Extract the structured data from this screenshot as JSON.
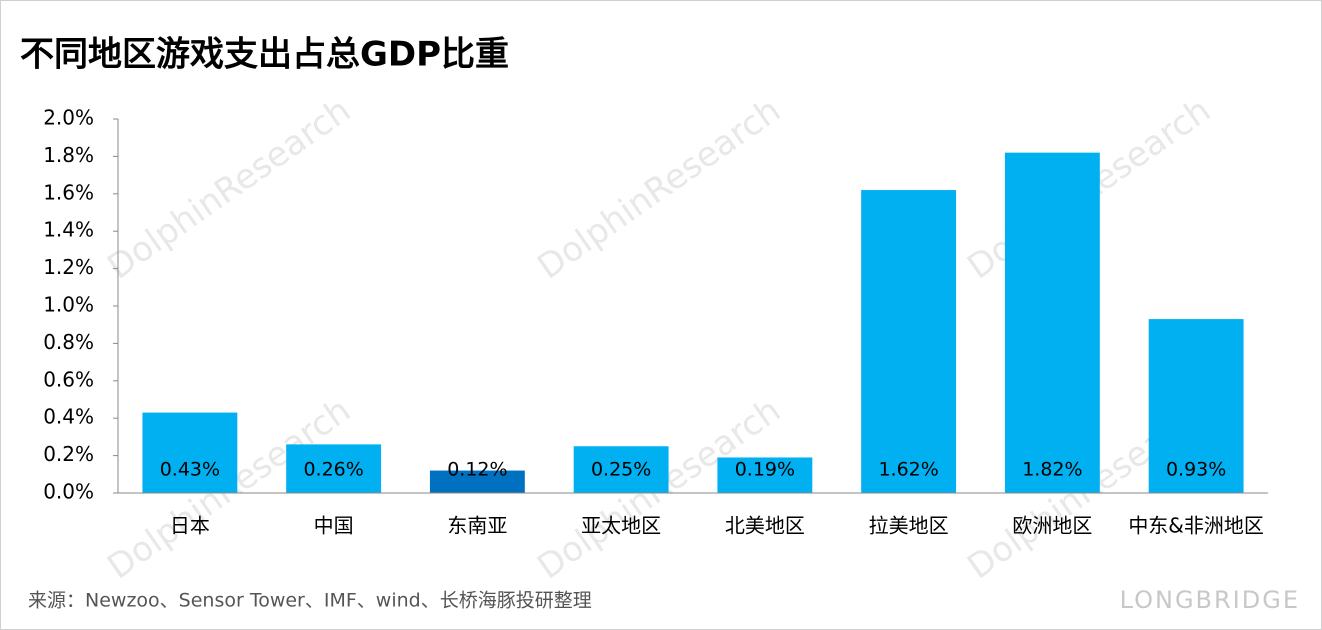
{
  "chart_data": {
    "type": "bar",
    "title": "不同地区游戏支出占总GDP比重",
    "categories": [
      "日本",
      "中国",
      "东南亚",
      "亚太地区",
      "北美地区",
      "拉美地区",
      "欧洲地区",
      "中东&非洲地区"
    ],
    "values": [
      0.43,
      0.26,
      0.12,
      0.25,
      0.19,
      1.62,
      1.82,
      0.93
    ],
    "value_labels": [
      "0.43%",
      "0.26%",
      "0.12%",
      "0.25%",
      "0.19%",
      "1.62%",
      "1.82%",
      "0.93%"
    ],
    "colors": [
      "#00b0f0",
      "#00b0f0",
      "#0070c0",
      "#00b0f0",
      "#00b0f0",
      "#00b0f0",
      "#00b0f0",
      "#00b0f0"
    ],
    "ylim": [
      0,
      2.0
    ],
    "yticks": [
      {
        "value": 0,
        "label": "0.0%"
      },
      {
        "value": 0.2,
        "label": "0.2%"
      },
      {
        "value": 0.4,
        "label": "0.4%"
      },
      {
        "value": 0.6,
        "label": "0.6%"
      },
      {
        "value": 0.8,
        "label": "0.8%"
      },
      {
        "value": 1.0,
        "label": "1.0%"
      },
      {
        "value": 1.2,
        "label": "1.2%"
      },
      {
        "value": 1.4,
        "label": "1.4%"
      },
      {
        "value": 1.6,
        "label": "1.6%"
      },
      {
        "value": 1.8,
        "label": "1.8%"
      },
      {
        "value": 2.0,
        "label": "2.0%"
      }
    ],
    "grid": false,
    "source": "来源：Newzoo、Sensor Tower、IMF、wind、长桥海豚投研整理",
    "watermark": "DolphinResearch",
    "logo": "LONGBRIDGE"
  }
}
